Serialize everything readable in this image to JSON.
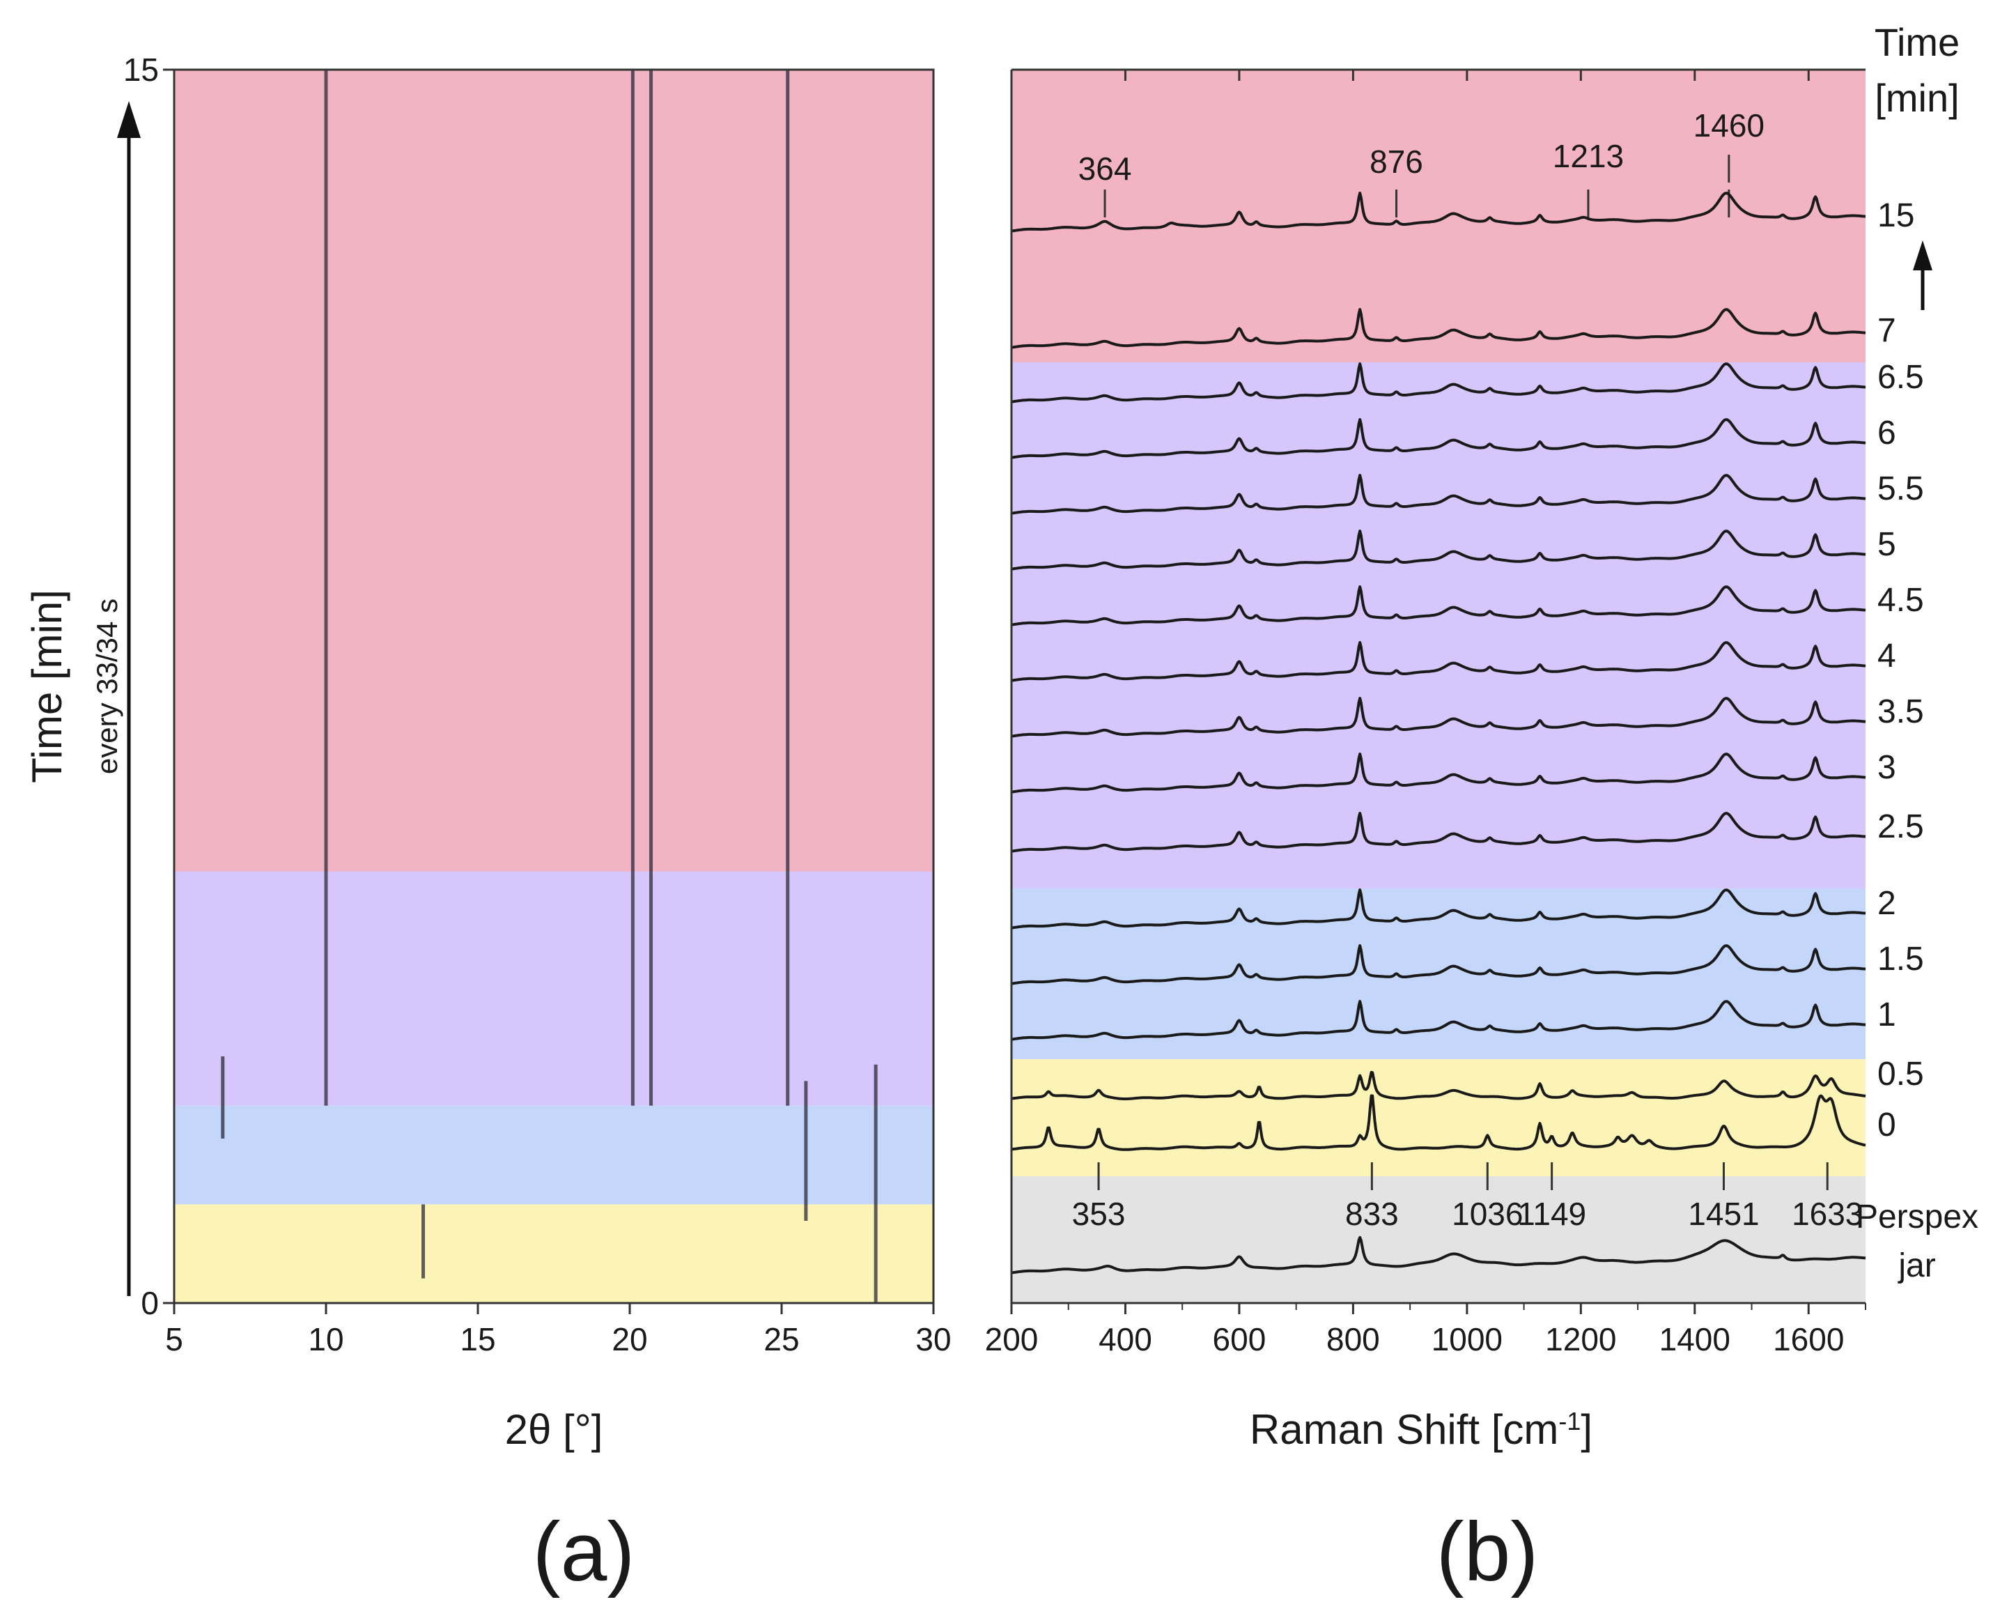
{
  "chart_data": [
    {
      "panel": "a",
      "type": "heatmap",
      "panel_label": "(a)",
      "xlabel": "2θ [°]",
      "ylabel": "Time [min]",
      "ylabel_sub": "every 33/34 s",
      "xlim": [
        5,
        30
      ],
      "ylim": [
        0,
        15
      ],
      "x_ticks": [
        "5",
        "10",
        "15",
        "20",
        "25",
        "30"
      ],
      "y_ticks": [
        "0",
        "15"
      ],
      "phase_bands": [
        {
          "name": "phase-1",
          "from": 0,
          "to": 1.2,
          "color": "#fcf4b6"
        },
        {
          "name": "phase-2",
          "from": 1.2,
          "to": 2.4,
          "color": "#c4d6f9"
        },
        {
          "name": "phase-3",
          "from": 2.4,
          "to": 5.25,
          "color": "#d6c6fb"
        },
        {
          "name": "phase-4",
          "from": 5.25,
          "to": 15,
          "color": "#f2b4c2"
        }
      ],
      "reflections": [
        {
          "two_theta": 6.6,
          "t_start": 2.0,
          "t_end": 3.0
        },
        {
          "two_theta": 10.0,
          "t_start": 2.4,
          "t_end": 15
        },
        {
          "two_theta": 13.2,
          "t_start": 0.3,
          "t_end": 1.2
        },
        {
          "two_theta": 20.1,
          "t_start": 2.4,
          "t_end": 15
        },
        {
          "two_theta": 20.7,
          "t_start": 2.4,
          "t_end": 15
        },
        {
          "two_theta": 25.2,
          "t_start": 2.4,
          "t_end": 15
        },
        {
          "two_theta": 25.8,
          "t_start": 1.0,
          "t_end": 2.7
        },
        {
          "two_theta": 28.1,
          "t_start": 0,
          "t_end": 2.9
        }
      ]
    },
    {
      "panel": "b",
      "type": "line",
      "panel_label": "(b)",
      "xlabel": "Raman Shift [cm",
      "xlabel_sup": "-1",
      "xlabel_end": "]",
      "xlim": [
        200,
        1700
      ],
      "x_ticks": [
        "200",
        "400",
        "600",
        "800",
        "1000",
        "1200",
        "1400",
        "1600"
      ],
      "time_header": [
        "Time",
        "[min]"
      ],
      "phase_bands": [
        {
          "name": "reference",
          "color": "#e3e3e3"
        },
        {
          "name": "phase-1",
          "color": "#fcf4b6"
        },
        {
          "name": "phase-2",
          "color": "#c4d6f9"
        },
        {
          "name": "phase-3",
          "color": "#d6c6fb"
        },
        {
          "name": "phase-4",
          "color": "#f2b4c2"
        }
      ],
      "series": [
        {
          "name": "15",
          "label": "15",
          "phase": "phase-4"
        },
        {
          "name": "7",
          "label": "7",
          "phase": "phase-4"
        },
        {
          "name": "6.5",
          "label": "6.5",
          "phase": "phase-3"
        },
        {
          "name": "6",
          "label": "6",
          "phase": "phase-3"
        },
        {
          "name": "5.5",
          "label": "5.5",
          "phase": "phase-3"
        },
        {
          "name": "5",
          "label": "5",
          "phase": "phase-3"
        },
        {
          "name": "4.5",
          "label": "4.5",
          "phase": "phase-3"
        },
        {
          "name": "4",
          "label": "4",
          "phase": "phase-3"
        },
        {
          "name": "3.5",
          "label": "3.5",
          "phase": "phase-3"
        },
        {
          "name": "3",
          "label": "3",
          "phase": "phase-3"
        },
        {
          "name": "2.5",
          "label": "2.5",
          "phase": "phase-3"
        },
        {
          "name": "2",
          "label": "2",
          "phase": "phase-2"
        },
        {
          "name": "1.5",
          "label": "1.5",
          "phase": "phase-2"
        },
        {
          "name": "1",
          "label": "1",
          "phase": "phase-2"
        },
        {
          "name": "0.5",
          "label": "0.5",
          "phase": "phase-1"
        },
        {
          "name": "0",
          "label": "0",
          "phase": "phase-1"
        },
        {
          "name": "Perspex jar",
          "label_lines": [
            "Perspex",
            "jar"
          ],
          "phase": "reference"
        }
      ],
      "annotations_top": [
        "364",
        "876",
        "1213",
        "1460"
      ],
      "annotations_bottom": [
        "353",
        "833",
        "1036",
        "1149",
        "1451",
        "1633"
      ],
      "annotation_positions": {
        "364": 364,
        "876": 876,
        "1213": 1213,
        "1460": 1460,
        "353": 353,
        "833": 833,
        "1036": 1036,
        "1149": 1149,
        "1451": 1451,
        "1633": 1633
      }
    }
  ]
}
